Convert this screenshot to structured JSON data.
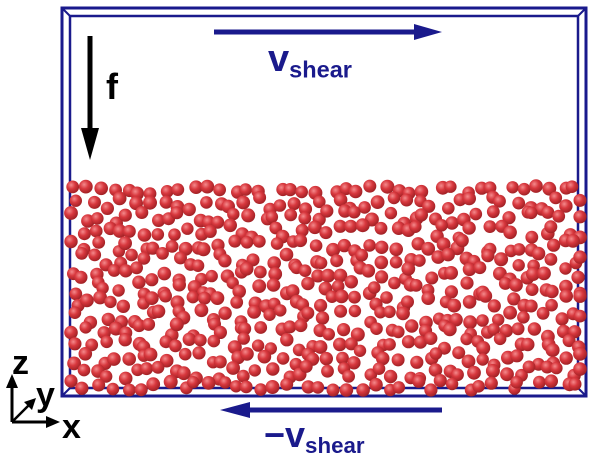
{
  "labels": {
    "force": "f",
    "top_velocity_main": "v",
    "top_velocity_sub": "shear",
    "bottom_velocity_main": "−v",
    "bottom_velocity_sub": "shear",
    "axis_x": "x",
    "axis_y": "y",
    "axis_z": "z"
  },
  "colors": {
    "box": "#1a1a8c",
    "arrow": "#1a1a8c",
    "force_arrow": "#000000",
    "particle": "#d8383e",
    "particle_shade": "#9a1e22",
    "particle_highlight": "#f48a8c"
  },
  "particles": {
    "columns": 38,
    "rows": 15,
    "seed": 7
  }
}
